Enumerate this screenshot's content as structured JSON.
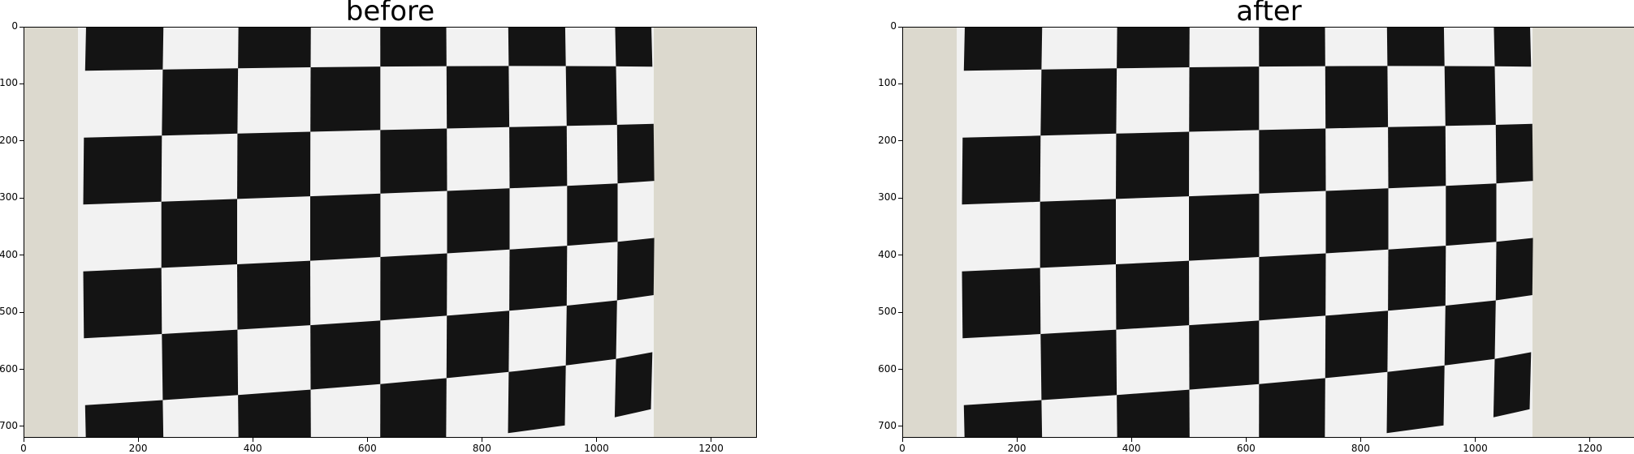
{
  "panels": [
    {
      "title": "before",
      "x_ticks": [
        "0",
        "200",
        "400",
        "600",
        "800",
        "1000",
        "1200"
      ],
      "y_ticks": [
        "0",
        "100",
        "200",
        "300",
        "400",
        "500",
        "600",
        "700"
      ]
    },
    {
      "title": "after",
      "x_ticks": [
        "0",
        "200",
        "400",
        "600",
        "800",
        "1000",
        "1200"
      ],
      "y_ticks": [
        "0",
        "100",
        "200",
        "300",
        "400",
        "500",
        "600",
        "700"
      ]
    }
  ],
  "image": {
    "description_colors": {
      "wall": "#dcd9ce",
      "paper": "#f2f2f2",
      "square": "#141414"
    },
    "data_width": 1280,
    "data_height": 720
  }
}
